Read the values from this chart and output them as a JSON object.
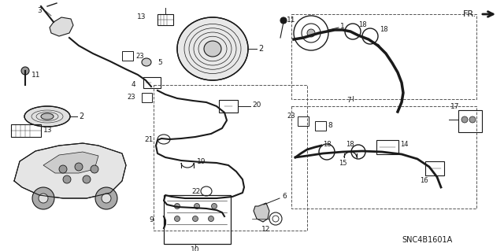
{
  "bg_color": "#ffffff",
  "line_color": "#1a1a1a",
  "fig_width": 6.4,
  "fig_height": 3.19,
  "dpi": 100,
  "part_number": "SNC4B1601A",
  "fr_label": "FR."
}
